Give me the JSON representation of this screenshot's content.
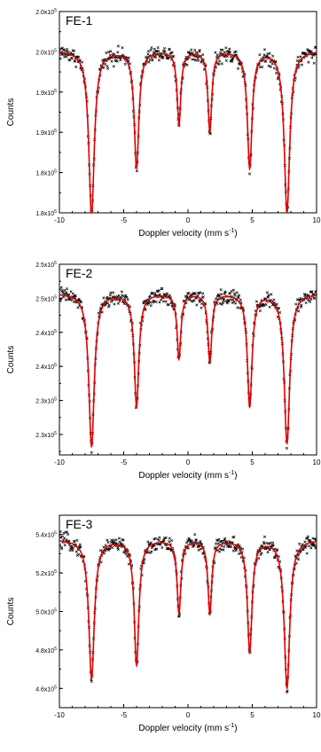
{
  "colors": {
    "fit": "#e00000",
    "data": "#000000",
    "axis": "#000000"
  },
  "chart_data": [
    {
      "type": "scatter",
      "label": "FE-1",
      "xlabel": "Doppler velocity (mm s",
      "xlabel_sup": "-1",
      "xlabel_end": ")",
      "ylabel": "Counts",
      "xlim": [
        -10,
        10
      ],
      "x_ticks": [
        -10,
        -5,
        0,
        5,
        10
      ],
      "x_tick_labels": [
        "-10",
        "-5",
        "0",
        "5",
        "10"
      ],
      "ylim": [
        1.8,
        2.05
      ],
      "y_ticks": [
        1.8,
        1.85,
        1.9,
        1.95,
        2.0,
        2.05
      ],
      "y_tick_labels": [
        "1.8x10",
        "1.8x10",
        "1.9x10",
        "1.9x10",
        "2.0x10",
        "2.0x10"
      ],
      "y_tick_exponent": "5",
      "baseline": 2.002,
      "noise": 0.006,
      "peaks": [
        {
          "x": -7.5,
          "depth": 0.205,
          "width": 0.26
        },
        {
          "x": -4.0,
          "depth": 0.145,
          "width": 0.22
        },
        {
          "x": -0.7,
          "depth": 0.09,
          "width": 0.18
        },
        {
          "x": 1.7,
          "depth": 0.1,
          "width": 0.18
        },
        {
          "x": 4.8,
          "depth": 0.145,
          "width": 0.22
        },
        {
          "x": 7.7,
          "depth": 0.2,
          "width": 0.26
        }
      ],
      "series": [
        {
          "name": "",
          "style": "data-points"
        },
        {
          "name": "",
          "style": "fit-line"
        }
      ]
    },
    {
      "type": "scatter",
      "label": "FE-2",
      "xlabel": "Doppler velocity (mm s",
      "xlabel_sup": "-1",
      "xlabel_end": ")",
      "ylabel": "Counts",
      "xlim": [
        -10,
        10
      ],
      "x_ticks": [
        -10,
        -5,
        0,
        5,
        10
      ],
      "x_tick_labels": [
        "-10",
        "-5",
        "0",
        "5",
        "10"
      ],
      "ylim": [
        2.27,
        2.55
      ],
      "y_ticks": [
        2.3,
        2.35,
        2.4,
        2.45,
        2.5,
        2.55
      ],
      "y_tick_labels": [
        "2.3x10",
        "2.3x10",
        "2.4x10",
        "2.4x10",
        "2.5x10",
        "2.5x10"
      ],
      "y_tick_exponent": "5",
      "baseline": 2.508,
      "noise": 0.007,
      "peaks": [
        {
          "x": -7.5,
          "depth": 0.225,
          "width": 0.26
        },
        {
          "x": -4.0,
          "depth": 0.165,
          "width": 0.22
        },
        {
          "x": -0.7,
          "depth": 0.095,
          "width": 0.18
        },
        {
          "x": 1.7,
          "depth": 0.1,
          "width": 0.18
        },
        {
          "x": 4.8,
          "depth": 0.165,
          "width": 0.22
        },
        {
          "x": 7.7,
          "depth": 0.22,
          "width": 0.26
        }
      ],
      "series": [
        {
          "name": "",
          "style": "data-points"
        },
        {
          "name": "",
          "style": "fit-line"
        }
      ]
    },
    {
      "type": "scatter",
      "label": "FE-3",
      "xlabel": "Doppler velocity (mm s",
      "xlabel_sup": "-1",
      "xlabel_end": ")",
      "ylabel": "Counts",
      "xlim": [
        -10,
        10
      ],
      "x_ticks": [
        -10,
        -5,
        0,
        5,
        10
      ],
      "x_tick_labels": [
        "-10",
        "-5",
        "0",
        "5",
        "10"
      ],
      "ylim": [
        4.5,
        5.5
      ],
      "y_ticks": [
        4.6,
        4.8,
        5.0,
        5.2,
        5.4
      ],
      "y_tick_labels": [
        "4.6x10",
        "4.8x10",
        "5.0x10",
        "5.2x10",
        "5.4x10"
      ],
      "y_tick_exponent": "5",
      "baseline": 5.375,
      "noise": 0.025,
      "peaks": [
        {
          "x": -7.5,
          "depth": 0.72,
          "width": 0.26
        },
        {
          "x": -4.0,
          "depth": 0.65,
          "width": 0.22
        },
        {
          "x": -0.7,
          "depth": 0.38,
          "width": 0.18
        },
        {
          "x": 1.7,
          "depth": 0.38,
          "width": 0.18
        },
        {
          "x": 4.8,
          "depth": 0.58,
          "width": 0.22
        },
        {
          "x": 7.7,
          "depth": 0.77,
          "width": 0.26
        }
      ],
      "series": [
        {
          "name": "",
          "style": "data-points"
        },
        {
          "name": "",
          "style": "fit-line"
        }
      ]
    }
  ]
}
